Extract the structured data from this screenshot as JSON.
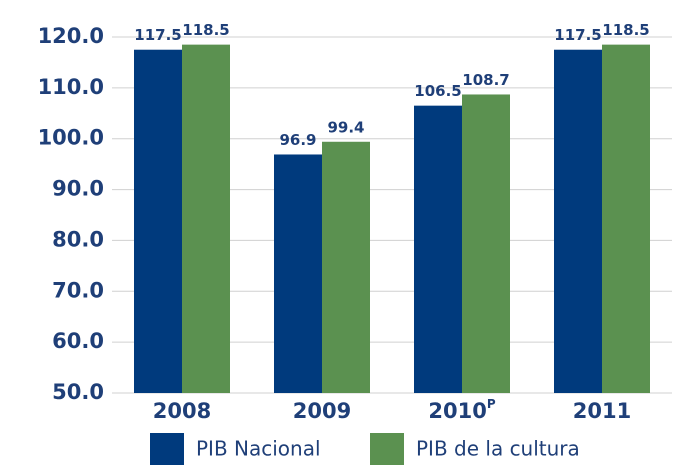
{
  "chart_data": {
    "type": "bar",
    "categories": [
      "2008",
      "2009",
      "2010",
      "2011"
    ],
    "category_superscripts": [
      null,
      null,
      "P",
      null
    ],
    "series": [
      {
        "name": "PIB Nacional",
        "color": "#003a7d",
        "values": [
          117.5,
          96.9,
          106.5,
          117.5
        ]
      },
      {
        "name": "PIB de la cultura",
        "color": "#5b9150",
        "values": [
          118.5,
          99.4,
          108.7,
          118.5
        ]
      }
    ],
    "ylim": [
      50,
      120
    ],
    "yticks": [
      {
        "value": 50,
        "label": "50.0"
      },
      {
        "value": 60,
        "label": "60.0"
      },
      {
        "value": 70,
        "label": "70.0"
      },
      {
        "value": 80,
        "label": "80.0"
      },
      {
        "value": 90,
        "label": "90.0"
      },
      {
        "value": 100,
        "label": "100.0"
      },
      {
        "value": 110,
        "label": "110.0"
      },
      {
        "value": 120,
        "label": "120.0"
      }
    ],
    "grid": true
  }
}
